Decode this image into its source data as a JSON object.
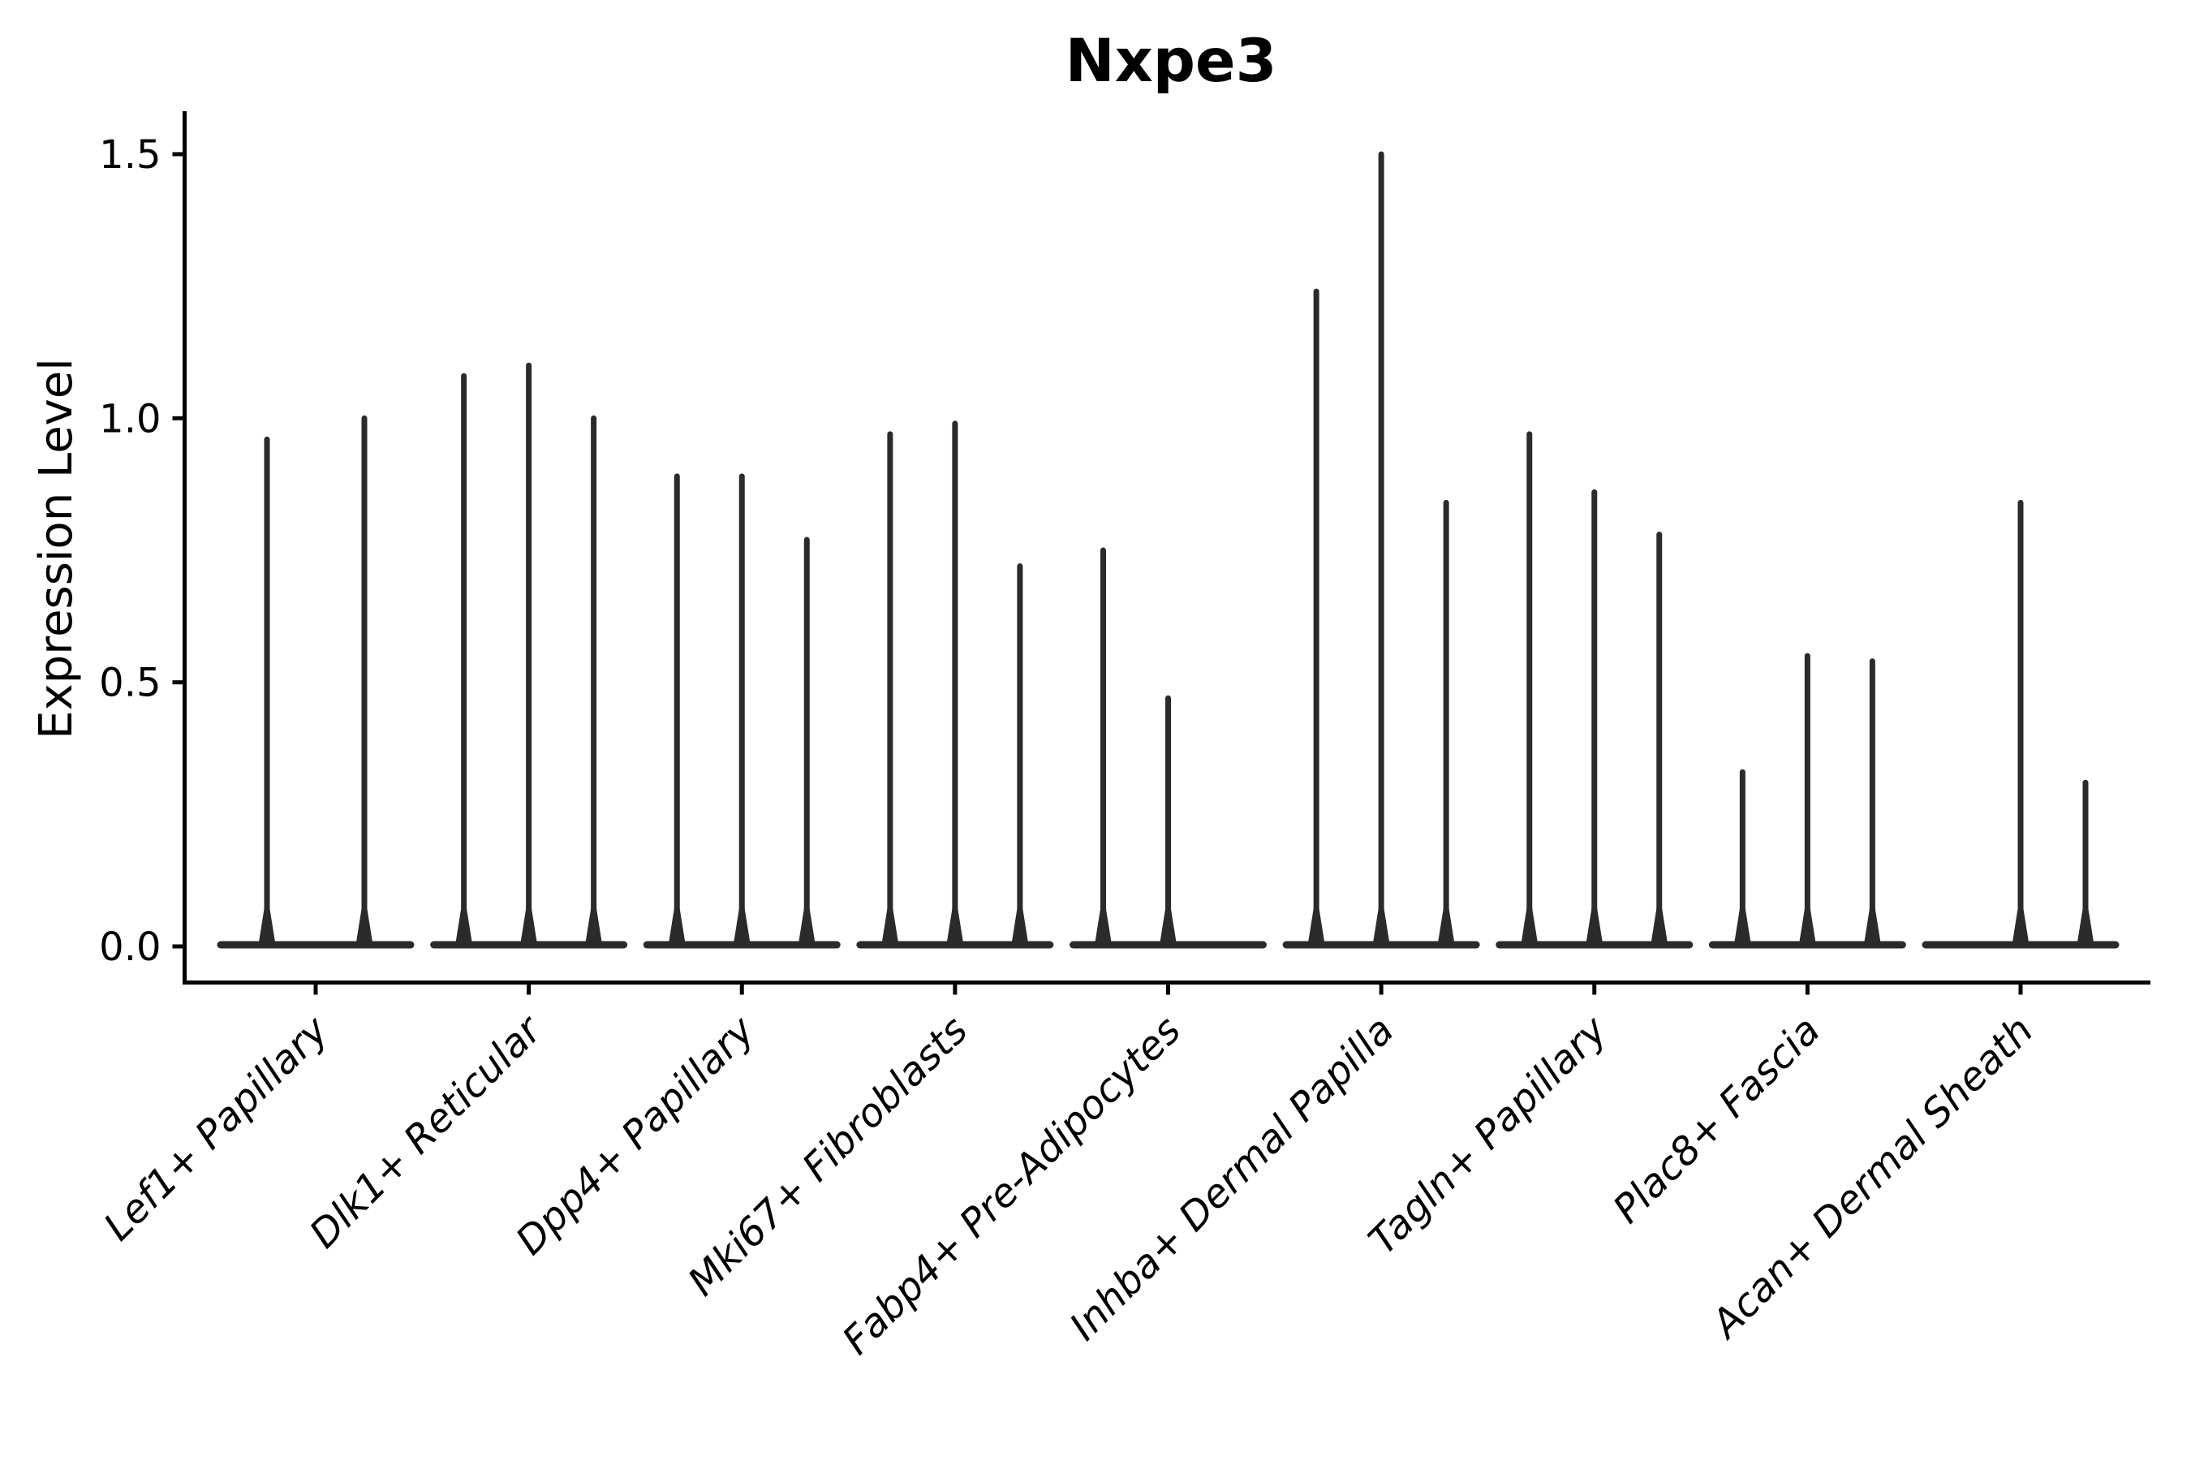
{
  "chart_data": {
    "type": "violin",
    "title": "Nxpe3",
    "ylabel": "Expression Level",
    "xlabel": "",
    "legend": "none",
    "grid": false,
    "background_color": "#ffffff",
    "axis_color": "#000000",
    "violin_color": "#2b2b2b",
    "ylim": [
      -0.07,
      1.58
    ],
    "yticks": [
      {
        "label": "0.0",
        "value": 0.0
      },
      {
        "label": "0.5",
        "value": 0.5
      },
      {
        "label": "1.0",
        "value": 1.0
      },
      {
        "label": "1.5",
        "value": 1.5
      }
    ],
    "categories": [
      "Lef1+ Papillary",
      "Dlk1+ Reticular",
      "Dpp4+ Papillary",
      "Mki67+ Fibroblasts",
      "Fabp4+ Pre-Adipocytes",
      "Inhba+ Dermal Papilla",
      "Tagln+ Papillary",
      "Plac8+ Fascia",
      "Acan+ Dermal Sheath"
    ],
    "groups": [
      {
        "label": "Lef1+ Papillary",
        "violin_maxima": [
          0.96,
          1.0
        ]
      },
      {
        "label": "Dlk1+ Reticular",
        "violin_maxima": [
          1.08,
          1.1,
          1.0
        ]
      },
      {
        "label": "Dpp4+ Papillary",
        "violin_maxima": [
          0.89,
          0.89,
          0.77
        ]
      },
      {
        "label": "Mki67+ Fibroblasts",
        "violin_maxima": [
          0.97,
          0.99,
          0.72
        ]
      },
      {
        "label": "Fabp4+ Pre-Adipocytes",
        "violin_maxima": [
          0.75,
          0.47,
          0.0
        ]
      },
      {
        "label": "Inhba+ Dermal Papilla",
        "violin_maxima": [
          1.24,
          1.5,
          0.84
        ]
      },
      {
        "label": "Tagln+ Papillary",
        "violin_maxima": [
          0.97,
          0.86,
          0.78
        ]
      },
      {
        "label": "Plac8+ Fascia",
        "violin_maxima": [
          0.33,
          0.55,
          0.54
        ]
      },
      {
        "label": "Acan+ Dermal Sheath",
        "violin_maxima": [
          0.0,
          0.84,
          0.31
        ]
      }
    ],
    "note": "Violins are flat pancakes at 0 expression with thin max-value spikes; a maximum of 0 means a flat violin with no spike."
  }
}
